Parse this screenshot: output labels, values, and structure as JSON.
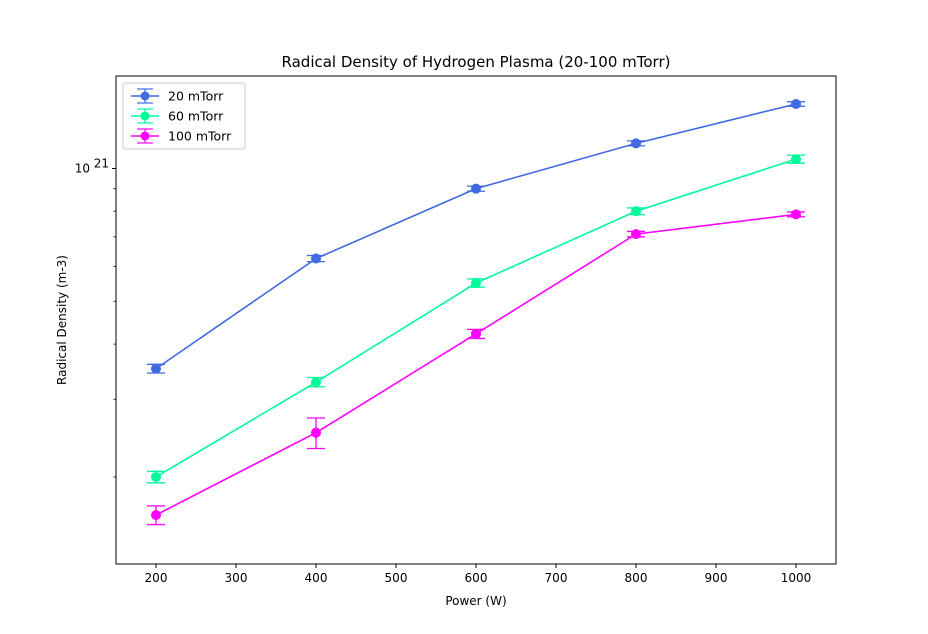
{
  "chart_data": {
    "type": "line",
    "title": "Radical Density of Hydrogen Plasma (20-100 mTorr)",
    "xlabel": "Power (W)",
    "ylabel": "Radical Density (m-3)",
    "yscale": "log",
    "xlim": [
      150,
      1050
    ],
    "ylim": [
      1.27e+20,
      1.62e+21
    ],
    "xticks": [
      200,
      300,
      400,
      500,
      600,
      700,
      800,
      900,
      1000
    ],
    "yticks_major": [
      {
        "value": 1e+21,
        "base": "10",
        "exp": "21"
      }
    ],
    "yticks_minor": [
      2e+20,
      3e+20,
      4e+20,
      5e+20,
      6e+20,
      7e+20,
      8e+20,
      9e+20
    ],
    "legend_position": "upper-left",
    "grid": false,
    "x": [
      200,
      400,
      600,
      800,
      1000
    ],
    "series": [
      {
        "name": "20 mTorr",
        "color": "#4169e1",
        "values": [
          3.52e+20,
          6.25e+20,
          9e+20,
          1.14e+21,
          1.4e+21
        ],
        "errors": [
          8e+18,
          1e+19,
          1.2e+19,
          1.5e+19,
          1.6e+19
        ]
      },
      {
        "name": "60 mTorr",
        "color": "#00fa9a",
        "values": [
          2e+20,
          3.28e+20,
          5.5e+20,
          8e+20,
          1.05e+21
        ],
        "errors": [
          6e+18,
          8e+18,
          1.2e+19,
          1.4e+19,
          2.2e+19
        ]
      },
      {
        "name": "100 mTorr",
        "color": "#ff00ff",
        "values": [
          1.64e+20,
          2.52e+20,
          4.22e+20,
          7.1e+20,
          7.87e+20
        ],
        "errors": [
          8e+18,
          2e+19,
          1e+19,
          1e+19,
          1e+19
        ]
      }
    ]
  }
}
